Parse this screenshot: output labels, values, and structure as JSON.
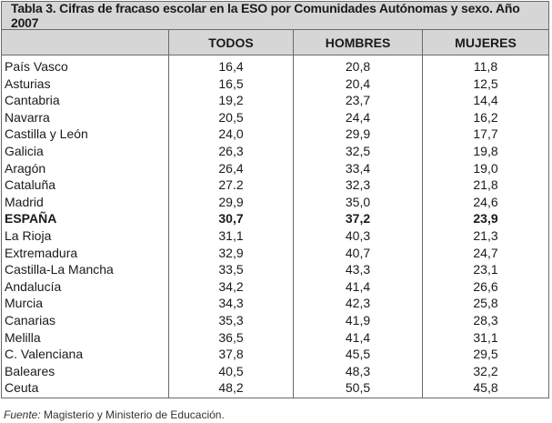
{
  "table": {
    "title": "Tabla 3. Cifras de fracaso escolar en la ESO por Comunidades Autónomas y sexo. Año 2007",
    "headers": [
      "TODOS",
      "HOMBRES",
      "MUJERES"
    ],
    "rows": [
      {
        "region": "País Vasco",
        "todos": "16,4",
        "hombres": "20,8",
        "mujeres": "11,8"
      },
      {
        "region": "Asturias",
        "todos": "16,5",
        "hombres": "20,4",
        "mujeres": "12,5"
      },
      {
        "region": "Cantabria",
        "todos": "19,2",
        "hombres": "23,7",
        "mujeres": "14,4"
      },
      {
        "region": "Navarra",
        "todos": "20,5",
        "hombres": "24,4",
        "mujeres": "16,2"
      },
      {
        "region": "Castilla y León",
        "todos": "24,0",
        "hombres": "29,9",
        "mujeres": "17,7"
      },
      {
        "region": "Galicia",
        "todos": "26,3",
        "hombres": "32,5",
        "mujeres": "19,8"
      },
      {
        "region": "Aragón",
        "todos": "26,4",
        "hombres": "33,4",
        "mujeres": "19,0"
      },
      {
        "region": "Cataluña",
        "todos": "27.2",
        "hombres": "32,3",
        "mujeres": "21,8"
      },
      {
        "region": "Madrid",
        "todos": "29,9",
        "hombres": "35,0",
        "mujeres": "24,6"
      },
      {
        "region": "ESPAÑA",
        "todos": "30,7",
        "hombres": "37,2",
        "mujeres": "23,9",
        "bold": true
      },
      {
        "region": "La Rioja",
        "todos": "31,1",
        "hombres": "40,3",
        "mujeres": "21,3"
      },
      {
        "region": "Extremadura",
        "todos": "32,9",
        "hombres": "40,7",
        "mujeres": "24,7"
      },
      {
        "region": "Castilla-La Mancha",
        "todos": "33,5",
        "hombres": "43,3",
        "mujeres": "23,1"
      },
      {
        "region": "Andalucía",
        "todos": "34,2",
        "hombres": "41,4",
        "mujeres": "26,6"
      },
      {
        "region": "Murcia",
        "todos": "34,3",
        "hombres": "42,3",
        "mujeres": "25,8"
      },
      {
        "region": "Canarias",
        "todos": "35,3",
        "hombres": "41,9",
        "mujeres": "28,3"
      },
      {
        "region": "Melilla",
        "todos": "36,5",
        "hombres": "41,4",
        "mujeres": "31,1"
      },
      {
        "region": "C. Valenciana",
        "todos": "37,8",
        "hombres": "45,5",
        "mujeres": "29,5"
      },
      {
        "region": "Baleares",
        "todos": "40,5",
        "hombres": "48,3",
        "mujeres": "32,2"
      },
      {
        "region": "Ceuta",
        "todos": "48,2",
        "hombres": "50,5",
        "mujeres": "45,8"
      }
    ]
  },
  "source": {
    "label": "Fuente:",
    "text": " Magisterio y Ministerio de Educación."
  }
}
